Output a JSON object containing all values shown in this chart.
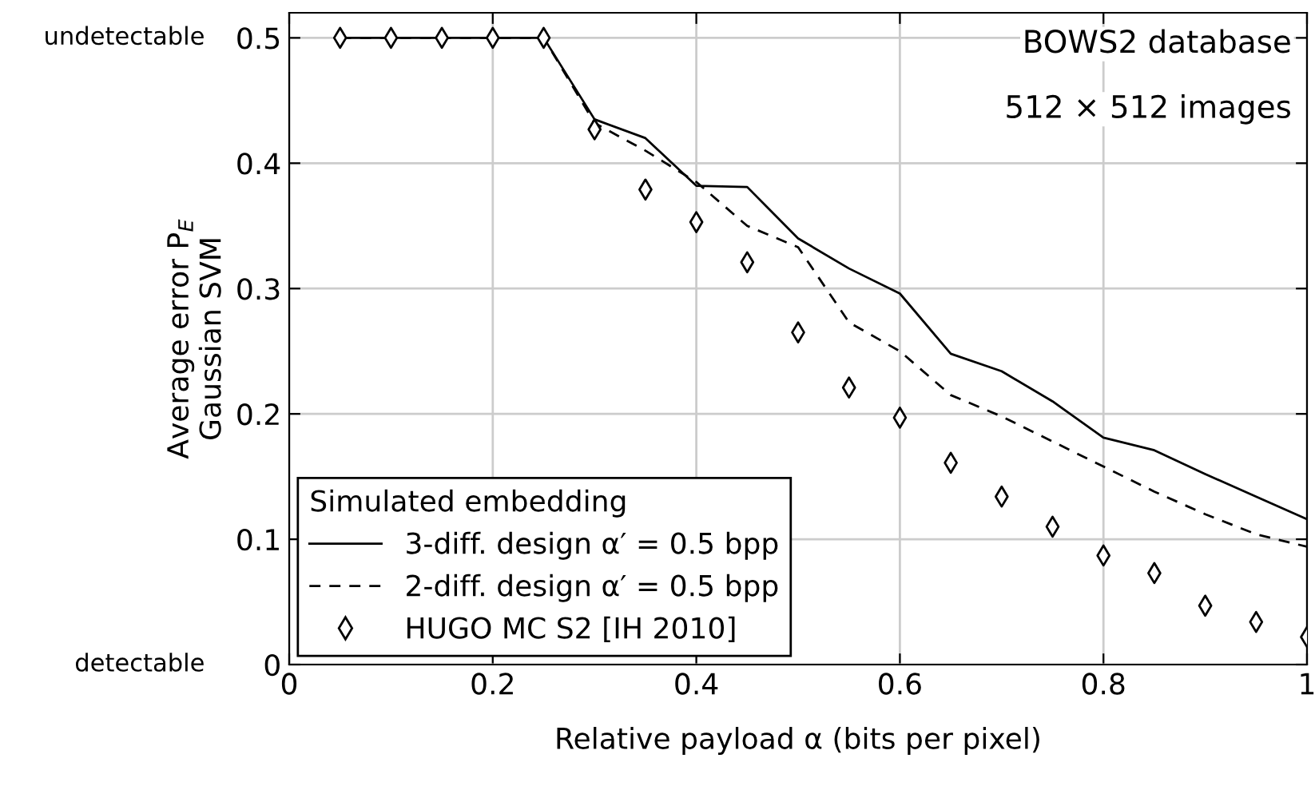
{
  "chart_data": {
    "type": "line",
    "xlabel": "Relative payload α (bits per pixel)",
    "ylabel": "Average error P$_{E}$\nGaussian SVM",
    "legend_title": "Simulated embedding",
    "x": [
      0.05,
      0.1,
      0.15,
      0.2,
      0.25,
      0.3,
      0.35,
      0.4,
      0.45,
      0.5,
      0.55,
      0.6,
      0.65,
      0.7,
      0.75,
      0.8,
      0.85,
      0.9,
      0.95,
      1
    ],
    "series": [
      {
        "name": "3-diff. design α′ = 0.5 bpp",
        "color": "#000000",
        "line_style": "solid",
        "marker": "none",
        "values": [
          0.5,
          0.5,
          0.5,
          0.5,
          0.5,
          0.435,
          0.42,
          0.382,
          0.381,
          0.34,
          0.316,
          0.296,
          0.248,
          0.234,
          0.21,
          0.181,
          0.171,
          0.152,
          0.134,
          0.116
        ]
      },
      {
        "name": "2-diff. design α′ = 0.5 bpp",
        "color": "#000000",
        "line_style": "dashed",
        "marker": "none",
        "values": [
          0.5,
          0.5,
          0.5,
          0.5,
          0.5,
          0.432,
          0.41,
          0.385,
          0.35,
          0.333,
          0.273,
          0.25,
          0.215,
          0.198,
          0.178,
          0.158,
          0.138,
          0.12,
          0.104,
          0.094
        ]
      },
      {
        "name": "HUGO MC S2 [IH 2010]",
        "type": "scatter",
        "color": "#000000",
        "marker": "diamond",
        "values": [
          0.5,
          0.5,
          0.5,
          0.5,
          0.5,
          0.427,
          0.379,
          0.353,
          0.321,
          0.265,
          0.221,
          0.197,
          0.161,
          0.134,
          0.11,
          0.087,
          0.073,
          0.047,
          0.034,
          0.022
        ]
      }
    ],
    "xlim": [
      0,
      1
    ],
    "ylim": [
      0,
      0.52
    ],
    "xticks": [
      0,
      0.2,
      0.4,
      0.6,
      0.8,
      1
    ],
    "yticks": [
      0,
      0.1,
      0.2,
      0.3,
      0.4,
      0.5
    ],
    "annotations": [
      "BOWS2 database",
      "512 × 512 images",
      "undetectable",
      "detectable"
    ],
    "grid": true,
    "legend": "bottom left"
  }
}
